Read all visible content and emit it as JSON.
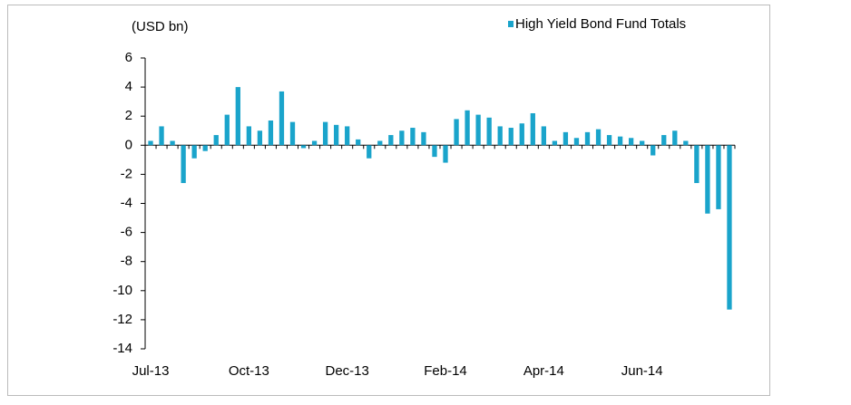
{
  "chart_data": {
    "type": "bar",
    "unit_label": "(USD bn)",
    "series": [
      {
        "name": "High Yield Bond Fund Totals",
        "color": "#1aa4cb",
        "values": [
          0.3,
          1.3,
          0.3,
          -2.6,
          -0.9,
          -0.4,
          0.7,
          2.1,
          4.0,
          1.3,
          1.0,
          1.7,
          3.7,
          1.6,
          -0.2,
          0.3,
          1.6,
          1.4,
          1.3,
          0.4,
          -0.9,
          0.3,
          0.7,
          1.0,
          1.2,
          0.9,
          -0.8,
          -1.2,
          1.8,
          2.4,
          2.1,
          1.9,
          1.3,
          1.2,
          1.5,
          2.2,
          1.3,
          0.3,
          0.9,
          0.5,
          0.9,
          1.1,
          0.7,
          0.6,
          0.5,
          0.3,
          -0.7,
          0.7,
          1.0,
          0.3,
          -2.6,
          -4.7,
          -4.4,
          -11.3
        ]
      }
    ],
    "categories": [
      "Jul-13",
      null,
      null,
      null,
      null,
      null,
      null,
      null,
      null,
      "Oct-13",
      null,
      null,
      null,
      null,
      null,
      null,
      null,
      null,
      "Dec-13",
      null,
      null,
      null,
      null,
      null,
      null,
      null,
      null,
      "Feb-14",
      null,
      null,
      null,
      null,
      null,
      null,
      null,
      null,
      "Apr-14",
      null,
      null,
      null,
      null,
      null,
      null,
      null,
      null,
      "Jun-14",
      null,
      null,
      null,
      null,
      null,
      null,
      null,
      null
    ],
    "ylim": [
      -14,
      6
    ],
    "yticks": [
      6,
      4,
      2,
      0,
      -2,
      -4,
      -6,
      -8,
      -10,
      -12,
      -14
    ],
    "legend": "top-right"
  }
}
